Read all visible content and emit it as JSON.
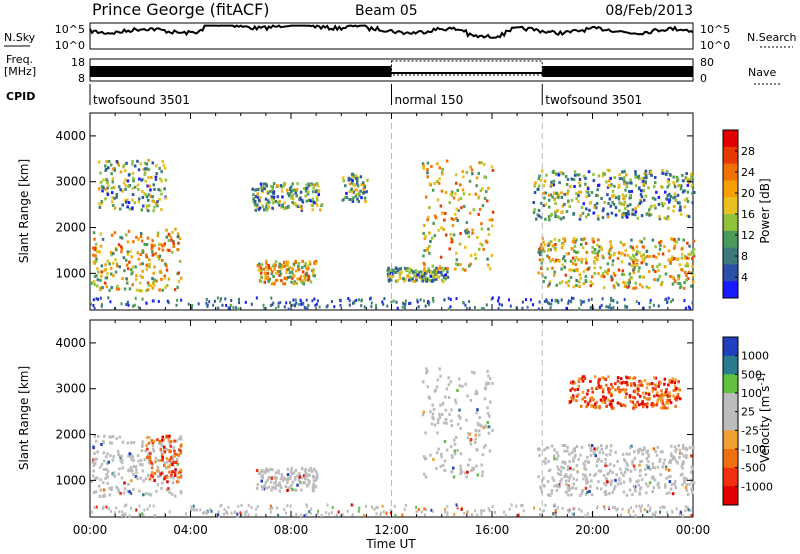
{
  "header": {
    "station": "Prince George (fitACF)",
    "beam": "Beam 05",
    "date": "08/Feb/2013"
  },
  "panel_labels": {
    "nsky": "N.Sky",
    "nsearch": "N.Search",
    "freq": "Freq.",
    "freq_unit": "[MHz]",
    "nave": "Nave",
    "cpid": "CPID",
    "nsky_ticks": [
      "10^5",
      "10^0"
    ],
    "nsearch_ticks": [
      "10^5",
      "10^0"
    ],
    "freq_ticks": [
      "18",
      "8"
    ],
    "nave_ticks": [
      "80",
      "0"
    ]
  },
  "cpid_segments": [
    {
      "label": "twofsound 3501",
      "start": 0,
      "end": 12
    },
    {
      "label": "normal 150",
      "start": 12,
      "end": 18
    },
    {
      "label": "twofsound 3501",
      "start": 18,
      "end": 24
    }
  ],
  "colors": {
    "power": [
      "#1a1aff",
      "#2b50a8",
      "#3c7a7a",
      "#4a9a5a",
      "#8fc43a",
      "#e8c020",
      "#f5a000",
      "#f07000",
      "#e83a00",
      "#e00000"
    ],
    "velocity": [
      "#2040c0",
      "#2a7a90",
      "#60c040",
      "#bcbcbc",
      "#bcbcbc",
      "#f0a030",
      "#f07010",
      "#f03010",
      "#e00000"
    ]
  },
  "chart_data": [
    {
      "type": "heatmap",
      "title": "",
      "xlabel": "Time UT",
      "ylabel": "Slant Range [km]",
      "xlim": [
        0,
        24
      ],
      "ylim": [
        200,
        4500
      ],
      "x_ticks": [
        "00:00",
        "04:00",
        "08:00",
        "12:00",
        "16:00",
        "20:00",
        "00:00"
      ],
      "y_ticks": [
        "1000",
        "2000",
        "3000",
        "4000"
      ],
      "colorbar": {
        "label": "Power [dB]",
        "ticks": [
          "4",
          "8",
          "12",
          "16",
          "20",
          "24",
          "28"
        ],
        "range": [
          0,
          30
        ]
      },
      "regions": [
        {
          "t0": 0,
          "t1": 3.6,
          "r0": 650,
          "r1": 2000,
          "level": "high"
        },
        {
          "t0": 0.3,
          "t1": 3.0,
          "r0": 2400,
          "r1": 3500,
          "level": "mid"
        },
        {
          "t0": 6.6,
          "t1": 9.0,
          "r0": 800,
          "r1": 1300,
          "level": "high"
        },
        {
          "t0": 6.4,
          "t1": 9.2,
          "r0": 2400,
          "r1": 3000,
          "level": "mid"
        },
        {
          "t0": 10.0,
          "t1": 11.0,
          "r0": 2600,
          "r1": 3200,
          "level": "mid"
        },
        {
          "t0": 11.8,
          "t1": 14.2,
          "r0": 850,
          "r1": 1150,
          "level": "mid"
        },
        {
          "t0": 13.2,
          "t1": 16.0,
          "r0": 1100,
          "r1": 3500,
          "level": "high"
        },
        {
          "t0": 17.8,
          "t1": 24,
          "r0": 700,
          "r1": 1800,
          "level": "high"
        },
        {
          "t0": 17.6,
          "t1": 24,
          "r0": 2200,
          "r1": 3300,
          "level": "mid"
        }
      ]
    },
    {
      "type": "heatmap",
      "title": "",
      "xlabel": "Time UT",
      "ylabel": "Slant Range [km]",
      "xlim": [
        0,
        24
      ],
      "ylim": [
        200,
        4500
      ],
      "x_ticks": [
        "00:00",
        "04:00",
        "08:00",
        "12:00",
        "16:00",
        "20:00",
        "00:00"
      ],
      "y_ticks": [
        "1000",
        "2000",
        "3000",
        "4000"
      ],
      "colorbar": {
        "label": "Velocity [m s^-1]",
        "ticks": [
          "1000",
          "500",
          "100",
          "25",
          "-25",
          "-100",
          "-500",
          "-1000"
        ],
        "range": [
          -1200,
          1200
        ]
      },
      "regions": [
        {
          "t0": 0,
          "t1": 3.6,
          "r0": 650,
          "r1": 2000,
          "level": "ground"
        },
        {
          "t0": 2.2,
          "t1": 3.6,
          "r0": 1000,
          "r1": 2000,
          "level": "neg"
        },
        {
          "t0": 6.6,
          "t1": 9.0,
          "r0": 800,
          "r1": 1300,
          "level": "ground"
        },
        {
          "t0": 13.2,
          "t1": 16.0,
          "r0": 1100,
          "r1": 3500,
          "level": "ground"
        },
        {
          "t0": 17.8,
          "t1": 24,
          "r0": 700,
          "r1": 1800,
          "level": "ground"
        },
        {
          "t0": 19.0,
          "t1": 23.5,
          "r0": 2600,
          "r1": 3300,
          "level": "neg"
        }
      ]
    }
  ]
}
